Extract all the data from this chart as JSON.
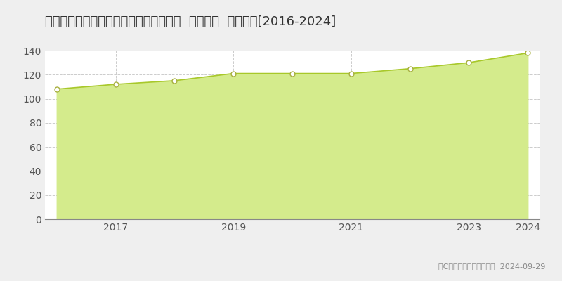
{
  "title": "東京都大田区大森南一丁目１６４番５外  基準地価  地価推移[2016-2024]",
  "years": [
    2016,
    2017,
    2018,
    2019,
    2020,
    2021,
    2022,
    2023,
    2024
  ],
  "values": [
    108,
    112,
    115,
    121,
    121,
    121,
    125,
    130,
    138
  ],
  "fill_color": "#d4eb8c",
  "line_color": "#a8c82a",
  "marker_facecolor": "#ffffff",
  "marker_edgecolor": "#a8b040",
  "background_color": "#efefef",
  "plot_bg_color": "#ffffff",
  "grid_color": "#cccccc",
  "ylim": [
    0,
    140
  ],
  "yticks": [
    0,
    20,
    40,
    60,
    80,
    100,
    120,
    140
  ],
  "xtick_years": [
    2017,
    2019,
    2021,
    2023,
    2024
  ],
  "copyright_text": "（C）土地価格ドットコム  2024-09-29",
  "title_fontsize": 13,
  "tick_fontsize": 10,
  "legend_fontsize": 9,
  "copyright_fontsize": 8
}
